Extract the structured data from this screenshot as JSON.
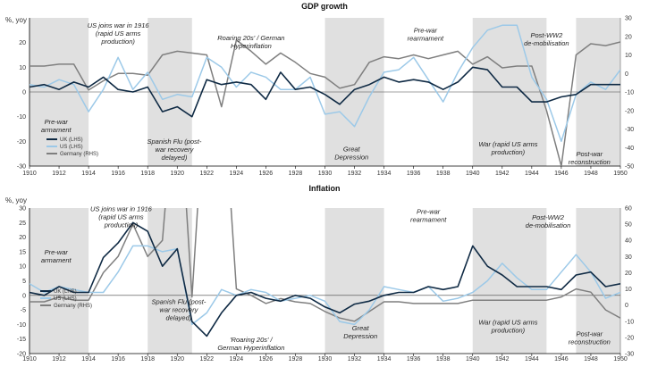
{
  "page": {
    "name": "gdp-growth-and-inflation-chart"
  },
  "colors": {
    "uk": "#0f2a44",
    "us": "#9cc9e8",
    "germany": "#7f7f7f",
    "band": "#e0e0e0",
    "axis": "#000000"
  },
  "chart_data": [
    {
      "type": "line",
      "title": "GDP growth",
      "ylabel": "%, yoy",
      "x": [
        1910,
        1911,
        1912,
        1913,
        1914,
        1915,
        1916,
        1917,
        1918,
        1919,
        1920,
        1921,
        1922,
        1923,
        1924,
        1925,
        1926,
        1927,
        1928,
        1929,
        1930,
        1931,
        1932,
        1933,
        1934,
        1935,
        1936,
        1937,
        1938,
        1939,
        1940,
        1941,
        1942,
        1943,
        1944,
        1945,
        1946,
        1947,
        1948,
        1949,
        1950
      ],
      "xticks": [
        1910,
        1912,
        1914,
        1916,
        1918,
        1920,
        1922,
        1924,
        1926,
        1928,
        1930,
        1932,
        1934,
        1936,
        1938,
        1940,
        1942,
        1944,
        1946,
        1948,
        1950
      ],
      "ylim": [
        -30,
        30
      ],
      "yticks": [
        -30,
        -20,
        -10,
        0,
        10,
        20
      ],
      "y2lim": [
        -50,
        30
      ],
      "y2ticks": [
        -50,
        -40,
        -30,
        -20,
        -10,
        0,
        10,
        20,
        30
      ],
      "series": [
        {
          "name": "UK (LHS)",
          "axis": "left",
          "color_key": "uk",
          "values": [
            2,
            3,
            1,
            4,
            2,
            6,
            1,
            0,
            2,
            -8,
            -6,
            -10,
            5,
            3,
            4,
            3,
            -3,
            8,
            1,
            2,
            -1,
            -5,
            1,
            3,
            6,
            4,
            5,
            4,
            1,
            4,
            10,
            9,
            2,
            2,
            -4,
            -4,
            -2,
            -1,
            3,
            3,
            3
          ]
        },
        {
          "name": "US (LHS)",
          "axis": "left",
          "color_key": "us",
          "values": [
            3,
            2,
            5,
            3,
            -8,
            1,
            14,
            1,
            8,
            -3,
            -1,
            -2,
            14,
            10,
            2,
            8,
            6,
            1,
            1,
            6,
            -9,
            -8,
            -14,
            -2,
            8,
            9,
            14,
            5,
            -4,
            8,
            18,
            25,
            27,
            27,
            6,
            -3,
            -20,
            -1,
            4,
            1,
            9
          ]
        },
        {
          "name": "Germany (RHS)",
          "axis": "right",
          "color_key": "germany",
          "values": [
            4,
            4,
            5,
            5,
            -9,
            -4,
            0,
            0,
            -1,
            10,
            12,
            11,
            10,
            -18,
            18,
            12,
            5,
            11,
            6,
            0,
            -2,
            -8,
            -6,
            6,
            9,
            8,
            10,
            8,
            10,
            12,
            5,
            9,
            3,
            4,
            4,
            -20,
            -50,
            10,
            16,
            15,
            17
          ]
        }
      ],
      "bands": [
        [
          1910,
          1914
        ],
        [
          1918,
          1921
        ],
        [
          1930,
          1934
        ],
        [
          1940,
          1945
        ],
        [
          1947,
          1950
        ]
      ],
      "annotations": [
        {
          "lines": [
            "Pre-war",
            "armament"
          ],
          "x": 1911.8,
          "y": -13
        },
        {
          "lines": [
            "US joins war in 1916",
            "(rapid US arms",
            "production)"
          ],
          "x": 1916.0,
          "y": 26
        },
        {
          "lines": [
            "Spanish Flu (post-",
            "war recovery",
            "delayed)"
          ],
          "x": 1919.8,
          "y": -21
        },
        {
          "lines": [
            "Roaring 20s' / German",
            "Hyperinflation"
          ],
          "x": 1925.0,
          "y": 21
        },
        {
          "lines": [
            "Great",
            "Depression"
          ],
          "x": 1931.8,
          "y": -24
        },
        {
          "lines": [
            "Pre-war",
            "rearmament"
          ],
          "x": 1936.8,
          "y": 24
        },
        {
          "lines": [
            "Post-WW2",
            "de-mobilisation"
          ],
          "x": 1945.0,
          "y": 22
        },
        {
          "lines": [
            "War (rapid US arms",
            "production)"
          ],
          "x": 1942.4,
          "y": -22
        },
        {
          "lines": [
            "Post-war",
            "reconstruction"
          ],
          "x": 1947.9,
          "y": -26
        }
      ]
    },
    {
      "type": "line",
      "title": "Inflation",
      "ylabel": "%, yoy",
      "x": [
        1910,
        1911,
        1912,
        1913,
        1914,
        1915,
        1916,
        1917,
        1918,
        1919,
        1920,
        1921,
        1922,
        1923,
        1924,
        1925,
        1926,
        1927,
        1928,
        1929,
        1930,
        1931,
        1932,
        1933,
        1934,
        1935,
        1936,
        1937,
        1938,
        1939,
        1940,
        1941,
        1942,
        1943,
        1944,
        1945,
        1946,
        1947,
        1948,
        1949,
        1950
      ],
      "xticks": [
        1910,
        1912,
        1914,
        1916,
        1918,
        1920,
        1922,
        1924,
        1926,
        1928,
        1930,
        1932,
        1934,
        1936,
        1938,
        1940,
        1942,
        1944,
        1946,
        1948,
        1950
      ],
      "ylim": [
        -20,
        30
      ],
      "yticks": [
        -20,
        -15,
        -10,
        -5,
        0,
        5,
        10,
        15,
        20,
        25,
        30
      ],
      "y2lim": [
        -30,
        60
      ],
      "y2ticks": [
        -30,
        -20,
        -10,
        0,
        10,
        20,
        30,
        40,
        50,
        60
      ],
      "series": [
        {
          "name": "UK (LHS)",
          "axis": "left",
          "color_key": "uk",
          "values": [
            1,
            0,
            3,
            1,
            1,
            13,
            18,
            25,
            22,
            10,
            16,
            -9,
            -14,
            -6,
            0,
            1,
            -1,
            -2,
            0,
            -1,
            -4,
            -6,
            -3,
            -2,
            0,
            1,
            1,
            3,
            2,
            3,
            17,
            10,
            7,
            3,
            3,
            3,
            2,
            7,
            8,
            3,
            4
          ]
        },
        {
          "name": "US (LHS)",
          "axis": "left",
          "color_key": "us",
          "values": [
            4,
            1,
            3,
            2,
            1,
            1,
            8,
            17,
            17,
            15,
            16,
            -10,
            -6,
            2,
            0,
            2,
            1,
            -2,
            -1,
            0,
            -2,
            -9,
            -10,
            -5,
            3,
            2,
            1,
            3,
            -2,
            -1,
            1,
            5,
            11,
            6,
            2,
            2,
            8,
            14,
            8,
            -1,
            1
          ]
        },
        {
          "name": "Germany (RHS)",
          "axis": "right",
          "color_key": "germany",
          "values": [
            2,
            2,
            5,
            3,
            3,
            20,
            30,
            50,
            30,
            40,
            150,
            5,
            150,
            150,
            10,
            6,
            1,
            4,
            2,
            1,
            -4,
            -8,
            -10,
            -4,
            2,
            2,
            1,
            1,
            1,
            1,
            3,
            3,
            3,
            3,
            3,
            3,
            5,
            10,
            8,
            -3,
            -8
          ]
        }
      ],
      "bands": [
        [
          1910,
          1914
        ],
        [
          1918,
          1921
        ],
        [
          1930,
          1934
        ],
        [
          1940,
          1945
        ],
        [
          1947,
          1950
        ]
      ],
      "annotations": [
        {
          "lines": [
            "Pre-war",
            "armament"
          ],
          "x": 1911.8,
          "y": 14
        },
        {
          "lines": [
            "US joins war in 1916",
            "(rapid US arms",
            "production)"
          ],
          "x": 1916.2,
          "y": 29
        },
        {
          "lines": [
            "Spanish Flu (post-",
            "war recovery",
            "delayed)"
          ],
          "x": 1920.1,
          "y": -3
        },
        {
          "lines": [
            "'Roaring 20s' /",
            "German Hyperinflation"
          ],
          "x": 1925.0,
          "y": -16
        },
        {
          "lines": [
            "Great",
            "Depression"
          ],
          "x": 1932.4,
          "y": -12
        },
        {
          "lines": [
            "Pre-war",
            "rearmament"
          ],
          "x": 1937.0,
          "y": 28
        },
        {
          "lines": [
            "Post-WW2",
            "de-mobilisation"
          ],
          "x": 1945.1,
          "y": 26
        },
        {
          "lines": [
            "War (rapid US arms",
            "production)"
          ],
          "x": 1942.4,
          "y": -10
        },
        {
          "lines": [
            "Post-war",
            "reconstruction"
          ],
          "x": 1947.9,
          "y": -14
        }
      ]
    }
  ]
}
